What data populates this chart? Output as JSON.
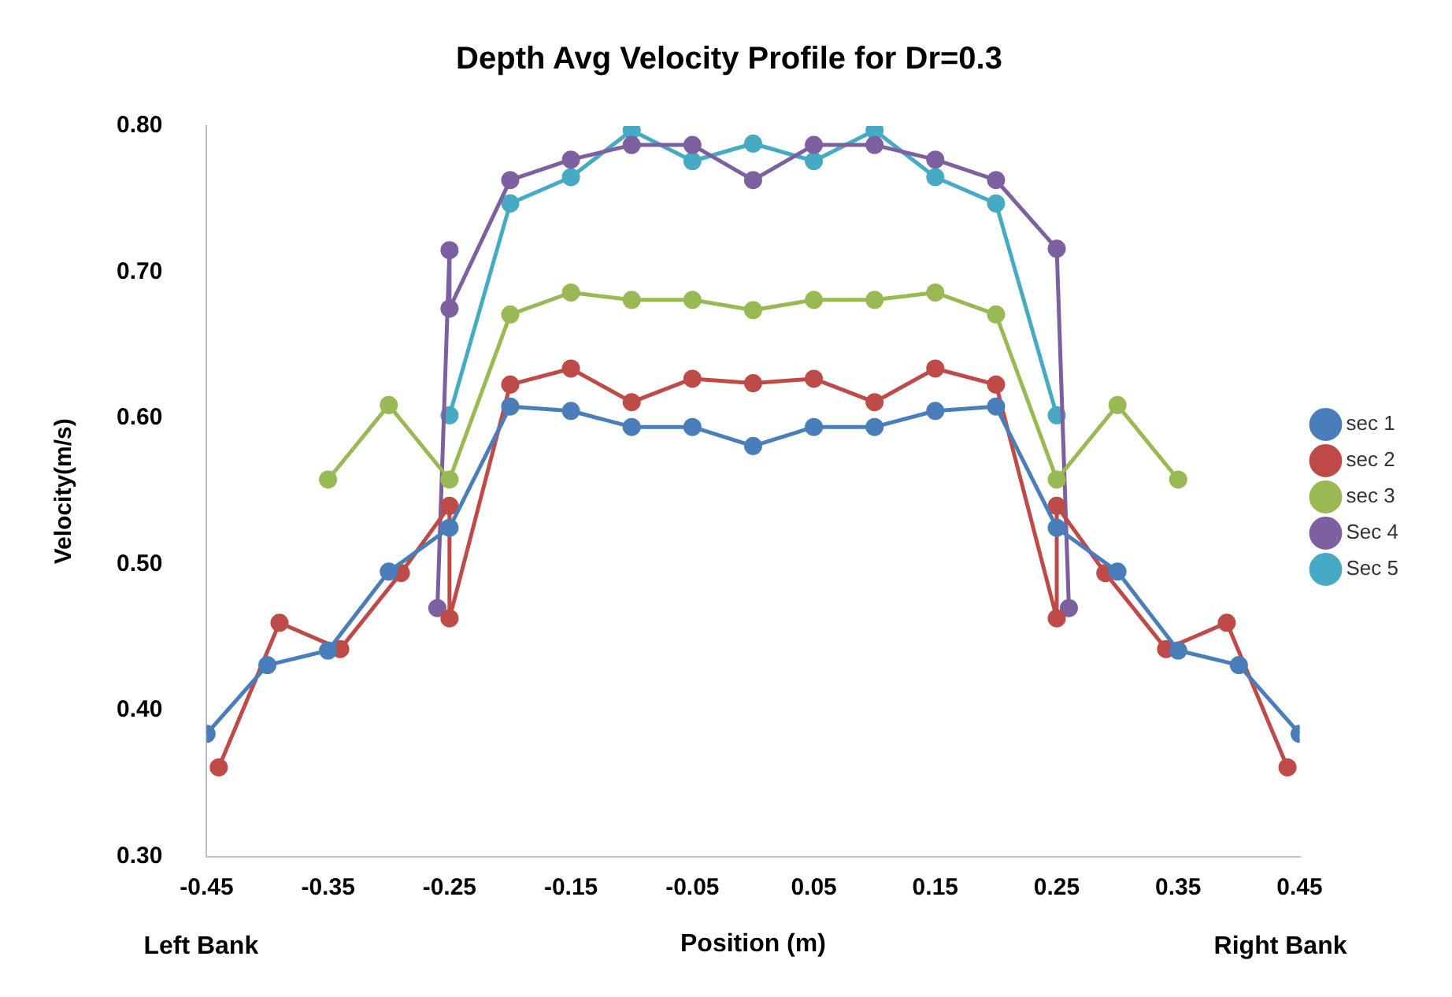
{
  "chart_data": {
    "type": "line",
    "title": "Depth Avg Velocity Profile for Dr=0.3",
    "xlabel": "Position (m)",
    "ylabel": "Velocity(m/s)",
    "annotations": [
      "Left Bank",
      "Right Bank"
    ],
    "xlim": [
      -0.45,
      0.45
    ],
    "xticks": [
      {
        "value": -0.45,
        "label": "-0.45"
      },
      {
        "value": -0.35,
        "label": "-0.35"
      },
      {
        "value": -0.25,
        "label": "-0.25"
      },
      {
        "value": -0.15,
        "label": "-0.15"
      },
      {
        "value": -0.05,
        "label": "-0.05"
      },
      {
        "value": 0.05,
        "label": "0.05"
      },
      {
        "value": 0.15,
        "label": "0.15"
      },
      {
        "value": 0.25,
        "label": "0.25"
      },
      {
        "value": 0.35,
        "label": "0.35"
      },
      {
        "value": 0.45,
        "label": "0.45"
      }
    ],
    "ylim": [
      0.3,
      0.8
    ],
    "yticks": [
      {
        "value": 0.3,
        "label": "0.30"
      },
      {
        "value": 0.4,
        "label": "0.40"
      },
      {
        "value": 0.5,
        "label": "0.50"
      },
      {
        "value": 0.6,
        "label": "0.60"
      },
      {
        "value": 0.7,
        "label": "0.70"
      },
      {
        "value": 0.8,
        "label": "0.80"
      }
    ],
    "grid": false,
    "legend": "right",
    "marker": "circle",
    "line_style": "solid",
    "series": [
      {
        "name": "sec 1",
        "color": "#4a7ebb",
        "x": [
          -0.45,
          -0.4,
          -0.35,
          -0.3,
          -0.25,
          -0.2,
          -0.15,
          -0.1,
          -0.05,
          0,
          0.05,
          0.1,
          0.15,
          0.2,
          0.25,
          0.3,
          0.35,
          0.4,
          0.45
        ],
        "values": [
          0.384,
          0.431,
          0.441,
          0.495,
          0.525,
          0.608,
          0.605,
          0.594,
          0.594,
          0.581,
          0.594,
          0.594,
          0.605,
          0.608,
          0.525,
          0.495,
          0.441,
          0.431,
          0.384
        ]
      },
      {
        "name": "sec 2",
        "color": "#be4b48",
        "x": [
          -0.44,
          -0.39,
          -0.34,
          -0.29,
          -0.25,
          -0.25,
          -0.2,
          -0.15,
          -0.1,
          -0.05,
          0,
          0.05,
          0.1,
          0.15,
          0.2,
          0.25,
          0.25,
          0.29,
          0.34,
          0.39,
          0.44
        ],
        "values": [
          0.361,
          0.46,
          0.442,
          0.494,
          0.54,
          0.463,
          0.623,
          0.634,
          0.611,
          0.627,
          0.624,
          0.627,
          0.611,
          0.634,
          0.623,
          0.463,
          0.54,
          0.494,
          0.442,
          0.46,
          0.361
        ]
      },
      {
        "name": "sec 3",
        "color": "#98b954",
        "x": [
          -0.35,
          -0.3,
          -0.25,
          -0.2,
          -0.15,
          -0.1,
          -0.05,
          0,
          0.05,
          0.1,
          0.15,
          0.2,
          0.25,
          0.3,
          0.35
        ],
        "values": [
          0.558,
          0.609,
          0.558,
          0.671,
          0.686,
          0.681,
          0.681,
          0.674,
          0.681,
          0.681,
          0.686,
          0.671,
          0.558,
          0.609,
          0.558
        ]
      },
      {
        "name": "Sec 4",
        "color": "#7d60a0",
        "x": [
          -0.26,
          -0.25,
          -0.25,
          -0.2,
          -0.15,
          -0.1,
          -0.05,
          0,
          0.05,
          0.1,
          0.15,
          0.2,
          0.25,
          0.26
        ],
        "values": [
          0.47,
          0.715,
          0.675,
          0.763,
          0.777,
          0.787,
          0.787,
          0.763,
          0.787,
          0.787,
          0.777,
          0.763,
          0.716,
          0.47
        ]
      },
      {
        "name": "Sec 5",
        "color": "#46aac5",
        "x": [
          -0.25,
          -0.2,
          -0.15,
          -0.1,
          -0.05,
          0,
          0.05,
          0.1,
          0.15,
          0.2,
          0.25
        ],
        "values": [
          0.602,
          0.747,
          0.765,
          0.797,
          0.776,
          0.788,
          0.776,
          0.797,
          0.765,
          0.747,
          0.602
        ]
      }
    ]
  }
}
